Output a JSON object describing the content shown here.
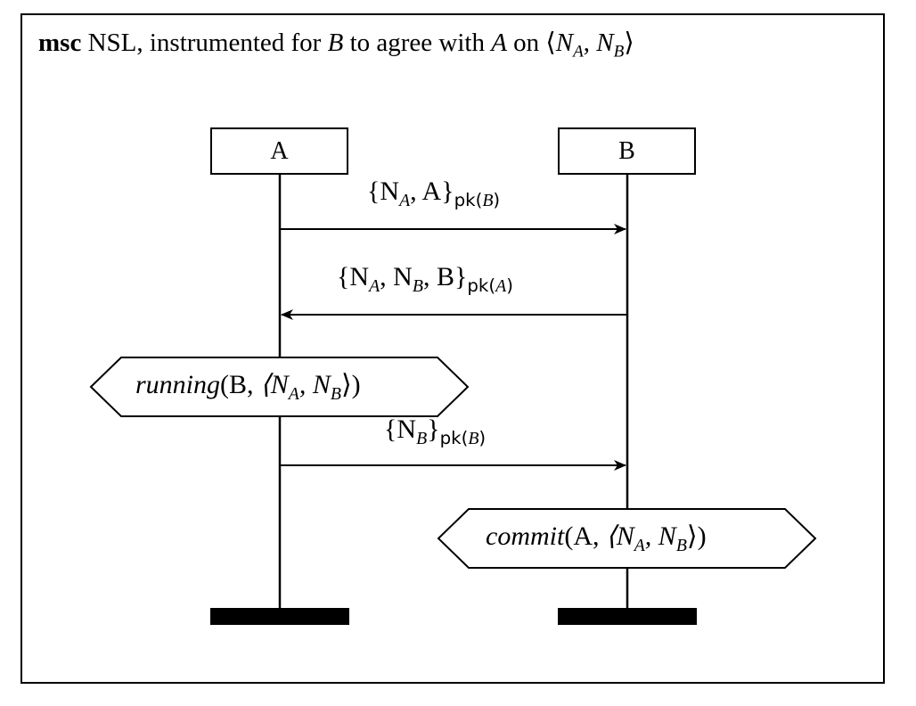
{
  "title": {
    "keyword": "msc",
    "name": "NSL, instrumented for",
    "agent_b": "B",
    "middle": "to agree with",
    "agent_a": "A",
    "tail": "on",
    "tuple_open": "⟨",
    "n": "N",
    "sub_a": "A",
    "comma": ",",
    "sub_b": "B",
    "tuple_close": "⟩"
  },
  "instances": [
    {
      "name": "A"
    },
    {
      "name": "B"
    }
  ],
  "messages": [
    {
      "direction": "A→B",
      "text_main": "{N",
      "text_sub1": "A",
      "text_mid": ", A}",
      "key": "pk(",
      "key_arg": "B",
      "key_close": ")"
    },
    {
      "direction": "B→A",
      "text_main": "{N",
      "text_sub1": "A",
      "text_mid": ", N",
      "text_sub2": "B",
      "text_mid2": ", B}",
      "key": "pk(",
      "key_arg": "A",
      "key_close": ")"
    },
    {
      "direction": "A→B",
      "text_main": "{N",
      "text_sub1": "B",
      "text_mid": "}",
      "key": "pk(",
      "key_arg": "B",
      "key_close": ")"
    }
  ],
  "conditions": [
    {
      "instance": "A",
      "name": "running",
      "args": "(B, ",
      "tuple": "⟨N",
      "s1": "A",
      "c": ", N",
      "s2": "B",
      "end": "⟩)"
    },
    {
      "instance": "B",
      "name": "commit",
      "args": "(A, ",
      "tuple": "⟨N",
      "s1": "A",
      "c": ", N",
      "s2": "B",
      "end": "⟩)"
    }
  ]
}
